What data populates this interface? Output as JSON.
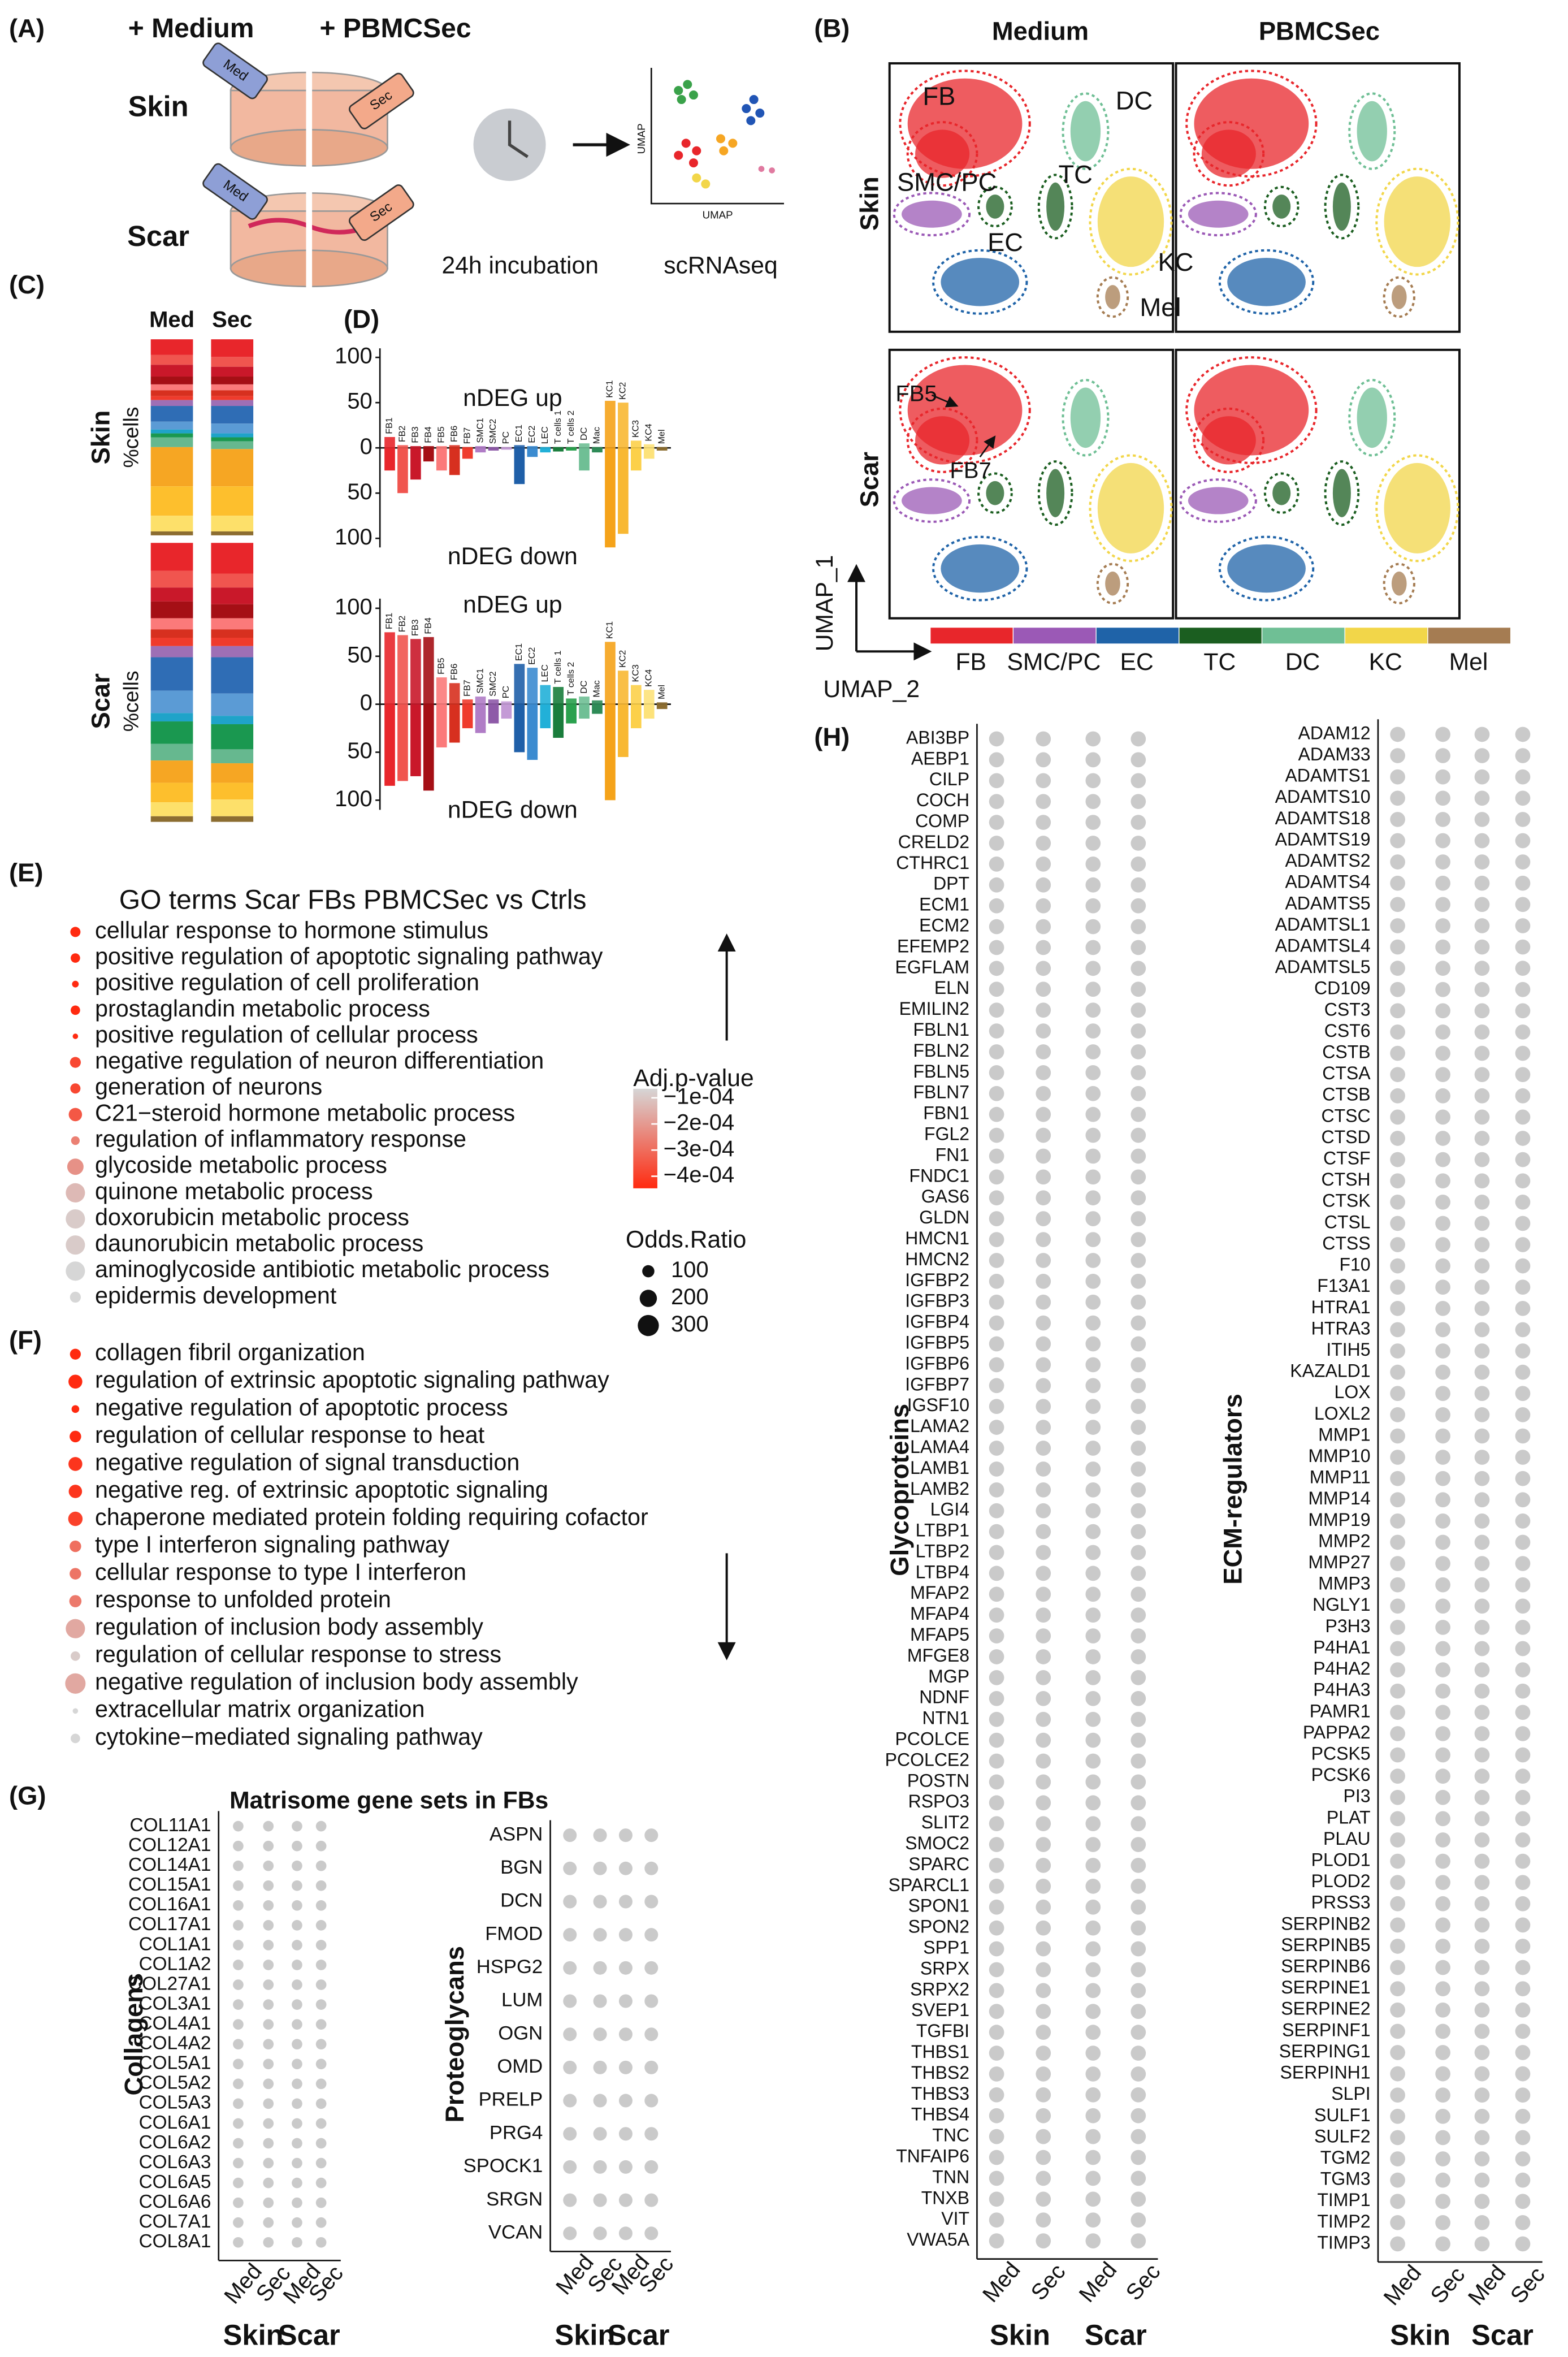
{
  "panel_a": {
    "label": "(A)",
    "medium": "+ Medium",
    "pbmcsec": "+ PBMCSec",
    "rows": [
      "Skin",
      "Scar"
    ],
    "syringes": [
      "Med",
      "Sec"
    ],
    "incubation": "24h incubation",
    "method": "scRNAseq",
    "umap_axes": [
      "UMAP",
      "UMAP"
    ]
  },
  "panel_b": {
    "label": "(B)",
    "columns": [
      "Medium",
      "PBMCSec"
    ],
    "rows": [
      "Skin",
      "Scar"
    ],
    "clusters": [
      "FB",
      "DC",
      "SMC/PC",
      "TC",
      "EC",
      "KC",
      "Mel"
    ],
    "subclusters": [
      "FB5",
      "FB7"
    ],
    "axis_y": "UMAP_1",
    "axis_x": "UMAP_2",
    "legend": [
      {
        "name": "FB",
        "color": "#e8262b"
      },
      {
        "name": "SMC/PC",
        "color": "#9b59b6"
      },
      {
        "name": "EC",
        "color": "#1f63a8"
      },
      {
        "name": "TC",
        "color": "#1b5e20"
      },
      {
        "name": "DC",
        "color": "#6fbf95"
      },
      {
        "name": "KC",
        "color": "#f2d649"
      },
      {
        "name": "Mel",
        "color": "#a57c52"
      }
    ]
  },
  "panel_c": {
    "label": "(C)",
    "columns": [
      "Med",
      "Sec"
    ],
    "rows": [
      "Skin",
      "Scar"
    ],
    "axis_label": "%cells",
    "segment_colors": [
      "#e8262b",
      "#f0554f",
      "#c9182a",
      "#a50f15",
      "#fb7a7a",
      "#d7301f",
      "#ef3b2c",
      "#9e6fb5",
      "#2f6db5",
      "#5b9bd5",
      "#1fa3c9",
      "#1a9850",
      "#66b88f",
      "#f6a623",
      "#fdbf2d",
      "#fde06a",
      "#8c6d31"
    ],
    "skin": [
      [
        8,
        5,
        6,
        4,
        3,
        3,
        2,
        3,
        8,
        4,
        2,
        2,
        5,
        20,
        15,
        8,
        2
      ],
      [
        9,
        5,
        5,
        4,
        3,
        3,
        2,
        3,
        9,
        5,
        2,
        2,
        4,
        19,
        15,
        8,
        2
      ]
    ],
    "scar": [
      [
        10,
        6,
        5,
        6,
        4,
        3,
        3,
        4,
        12,
        8,
        3,
        8,
        6,
        8,
        7,
        5,
        2
      ],
      [
        11,
        5,
        6,
        5,
        4,
        3,
        3,
        4,
        13,
        8,
        3,
        9,
        5,
        7,
        6,
        6,
        2
      ]
    ]
  },
  "panel_d_label": "(D)",
  "chart_data": [
    {
      "type": "bar",
      "categories": [
        "FB1",
        "FB2",
        "FB3",
        "FB4",
        "FB5",
        "FB6",
        "FB7",
        "SMC1",
        "SMC2",
        "PC",
        "EC1",
        "EC2",
        "LEC",
        "T cells 1",
        "T cells 2",
        "DC",
        "Mac",
        "KC1",
        "KC2",
        "KC3",
        "KC4",
        "Mel"
      ],
      "colors": [
        "#e8262b",
        "#f0554f",
        "#c9182a",
        "#a50f15",
        "#fb7a7a",
        "#d7301f",
        "#ef3b2c",
        "#b07cc6",
        "#8e5aa8",
        "#c49bd6",
        "#1f5fa8",
        "#3b8bd0",
        "#22b0d8",
        "#1a7d3c",
        "#2aa14e",
        "#6fbf95",
        "#2e8b57",
        "#f5a31a",
        "#f8b833",
        "#fcd04a",
        "#fde27a",
        "#8c6d31"
      ],
      "series": [
        {
          "name": "nDEG up",
          "values": [
            12,
            3,
            2,
            2,
            2,
            3,
            1,
            2,
            1,
            1,
            3,
            2,
            1,
            1,
            1,
            5,
            1,
            52,
            50,
            8,
            4,
            1
          ]
        },
        {
          "name": "nDEG down",
          "values": [
            -25,
            -50,
            -35,
            -15,
            -25,
            -30,
            -12,
            -5,
            -3,
            -2,
            -40,
            -10,
            -5,
            -4,
            -3,
            -25,
            -5,
            -110,
            -95,
            -25,
            -12,
            -3
          ]
        }
      ],
      "ylim": [
        -110,
        110
      ],
      "yticks": [
        100,
        50,
        0,
        {
          "value": -50,
          "label": "50"
        },
        {
          "value": -100,
          "label": "100"
        }
      ]
    },
    {
      "type": "bar",
      "categories": [
        "FB1",
        "FB2",
        "FB3",
        "FB4",
        "FB5",
        "FB6",
        "FB7",
        "SMC1",
        "SMC2",
        "PC",
        "EC1",
        "EC2",
        "LEC",
        "T cells 1",
        "T cells 2",
        "DC",
        "Mac",
        "KC1",
        "KC2",
        "KC3",
        "KC4",
        "Mel"
      ],
      "colors": [
        "#e8262b",
        "#f0554f",
        "#c9182a",
        "#a50f15",
        "#fb7a7a",
        "#d7301f",
        "#ef3b2c",
        "#b07cc6",
        "#8e5aa8",
        "#c49bd6",
        "#1f5fa8",
        "#3b8bd0",
        "#22b0d8",
        "#1a7d3c",
        "#2aa14e",
        "#6fbf95",
        "#2e8b57",
        "#f5a31a",
        "#f8b833",
        "#fcd04a",
        "#fde27a",
        "#8c6d31"
      ],
      "series": [
        {
          "name": "nDEG up",
          "values": [
            75,
            72,
            68,
            70,
            28,
            22,
            5,
            8,
            5,
            3,
            42,
            38,
            20,
            18,
            6,
            8,
            4,
            65,
            35,
            20,
            15,
            2
          ]
        },
        {
          "name": "nDEG down",
          "values": [
            -85,
            -80,
            -75,
            -90,
            -45,
            -40,
            -25,
            -30,
            -20,
            -15,
            -50,
            -58,
            -25,
            -35,
            -20,
            -15,
            -10,
            -100,
            -55,
            -25,
            -15,
            -5
          ]
        }
      ],
      "ylim": [
        -110,
        110
      ],
      "yticks": [
        100,
        50,
        0,
        {
          "value": -50,
          "label": "50"
        },
        {
          "value": -100,
          "label": "100"
        }
      ]
    }
  ],
  "panel_e": {
    "label": "(E)",
    "title": "GO terms Scar FBs PBMCSec vs Ctrls",
    "terms": [
      "cellular response to hormone stimulus",
      "positive regulation of apoptotic signaling pathway",
      "positive regulation of cell proliferation",
      "prostaglandin metabolic process",
      "positive regulation of cellular process",
      "negative regulation of neuron differentiation",
      "generation of neurons",
      "C21−steroid hormone metabolic process",
      "regulation of inflammatory response",
      "glycoside metabolic process",
      "quinone metabolic process",
      "doxorubicin metabolic process",
      "daunorubicin metabolic process",
      "aminoglycoside antibiotic metabolic process",
      "epidermis development"
    ],
    "odds_ratio": [
      70,
      60,
      30,
      60,
      20,
      80,
      70,
      120,
      50,
      180,
      250,
      250,
      250,
      250,
      80
    ],
    "adj_p": [
      -0.00042,
      -0.00042,
      -0.0004,
      -0.0004,
      -0.0004,
      -0.00035,
      -0.00035,
      -0.00032,
      -0.00025,
      -0.00022,
      -0.00015,
      -0.00012,
      -0.00012,
      -0.0001,
      -0.0001
    ],
    "legend": {
      "color_title": "Adj.p-value",
      "colors": [
        "#d6d6d6",
        "#ff2a10"
      ],
      "color_ticks": [
        {
          "value": -0.0001,
          "label": "−1e-04"
        },
        {
          "value": -0.0002,
          "label": "−2e-04"
        },
        {
          "value": -0.0003,
          "label": "−3e-04"
        },
        {
          "value": -0.0004,
          "label": "−4e-04"
        }
      ],
      "size_title": "Odds.Ratio",
      "size_ticks": [
        100,
        200,
        300
      ]
    }
  },
  "panel_f": {
    "label": "(F)",
    "terms": [
      "collagen fibril organization",
      "regulation of extrinsic apoptotic signaling pathway",
      "negative regulation of apoptotic process",
      "regulation of cellular response to heat",
      "negative regulation of signal transduction",
      "negative reg. of extrinsic apoptotic signaling",
      "chaperone mediated protein folding requiring cofactor",
      "type I interferon signaling pathway",
      "cellular response to type I interferon",
      "response to unfolded protein",
      "regulation of inclusion body assembly",
      "regulation of cellular response to stress",
      "negative regulation of inclusion body assembly",
      "extracellular matrix organization",
      "cytokine−mediated signaling pathway"
    ],
    "odds_ratio": [
      80,
      130,
      40,
      90,
      130,
      120,
      140,
      90,
      90,
      100,
      250,
      60,
      280,
      20,
      60
    ],
    "adj_p": [
      -0.00042,
      -0.0004,
      -0.0004,
      -0.0004,
      -0.00038,
      -0.00038,
      -0.00036,
      -0.00028,
      -0.00027,
      -0.00026,
      -0.00018,
      -0.00012,
      -0.00018,
      -0.0001,
      -0.0001
    ]
  },
  "panel_g": {
    "label": "(G)",
    "title": "Matrisome gene sets in FBs",
    "conditions": [
      "Med",
      "Sec",
      "Med",
      "Sec"
    ],
    "tissues": [
      "Skin",
      "Scar"
    ],
    "plots": [
      {
        "name": "Collagens",
        "genes": [
          "COL11A1",
          "COL12A1",
          "COL14A1",
          "COL15A1",
          "COL16A1",
          "COL17A1",
          "COL1A1",
          "COL1A2",
          "COL27A1",
          "COL3A1",
          "COL4A1",
          "COL4A2",
          "COL5A1",
          "COL5A2",
          "COL5A3",
          "COL6A1",
          "COL6A2",
          "COL6A3",
          "COL6A5",
          "COL6A6",
          "COL7A1",
          "COL8A1"
        ]
      },
      {
        "name": "Proteoglycans",
        "genes": [
          "ASPN",
          "BGN",
          "DCN",
          "FMOD",
          "HSPG2",
          "LUM",
          "OGN",
          "OMD",
          "PRELP",
          "PRG4",
          "SPOCK1",
          "SRGN",
          "VCAN"
        ]
      }
    ]
  },
  "panel_h": {
    "label": "(H)",
    "conditions": [
      "Med",
      "Sec",
      "Med",
      "Sec"
    ],
    "tissues": [
      "Skin",
      "Scar"
    ],
    "plots": [
      {
        "name": "Glycoproteins",
        "genes": [
          "ABI3BP",
          "AEBP1",
          "CILP",
          "COCH",
          "COMP",
          "CRELD2",
          "CTHRC1",
          "DPT",
          "ECM1",
          "ECM2",
          "EFEMP2",
          "EGFLAM",
          "ELN",
          "EMILIN2",
          "FBLN1",
          "FBLN2",
          "FBLN5",
          "FBLN7",
          "FBN1",
          "FGL2",
          "FN1",
          "FNDC1",
          "GAS6",
          "GLDN",
          "HMCN1",
          "HMCN2",
          "IGFBP2",
          "IGFBP3",
          "IGFBP4",
          "IGFBP5",
          "IGFBP6",
          "IGFBP7",
          "IGSF10",
          "LAMA2",
          "LAMA4",
          "LAMB1",
          "LAMB2",
          "LGI4",
          "LTBP1",
          "LTBP2",
          "LTBP4",
          "MFAP2",
          "MFAP4",
          "MFAP5",
          "MFGE8",
          "MGP",
          "NDNF",
          "NTN1",
          "PCOLCE",
          "PCOLCE2",
          "POSTN",
          "RSPO3",
          "SLIT2",
          "SMOC2",
          "SPARC",
          "SPARCL1",
          "SPON1",
          "SPON2",
          "SPP1",
          "SRPX",
          "SRPX2",
          "SVEP1",
          "TGFBI",
          "THBS1",
          "THBS2",
          "THBS3",
          "THBS4",
          "TNC",
          "TNFAIP6",
          "TNN",
          "TNXB",
          "VIT",
          "VWA5A"
        ]
      },
      {
        "name": "ECM-regulators",
        "genes": [
          "ADAM12",
          "ADAM33",
          "ADAMTS1",
          "ADAMTS10",
          "ADAMTS18",
          "ADAMTS19",
          "ADAMTS2",
          "ADAMTS4",
          "ADAMTS5",
          "ADAMTSL1",
          "ADAMTSL4",
          "ADAMTSL5",
          "CD109",
          "CST3",
          "CST6",
          "CSTB",
          "CTSA",
          "CTSB",
          "CTSC",
          "CTSD",
          "CTSF",
          "CTSH",
          "CTSK",
          "CTSL",
          "CTSS",
          "F10",
          "F13A1",
          "HTRA1",
          "HTRA3",
          "ITIH5",
          "KAZALD1",
          "LOX",
          "LOXL2",
          "MMP1",
          "MMP10",
          "MMP11",
          "MMP14",
          "MMP19",
          "MMP2",
          "MMP27",
          "MMP3",
          "NGLY1",
          "P3H3",
          "P4HA1",
          "P4HA2",
          "P4HA3",
          "PAMR1",
          "PAPPA2",
          "PCSK5",
          "PCSK6",
          "PI3",
          "PLAT",
          "PLAU",
          "PLOD1",
          "PLOD2",
          "PRSS3",
          "SERPINB2",
          "SERPINB5",
          "SERPINB6",
          "SERPINE1",
          "SERPINE2",
          "SERPINF1",
          "SERPING1",
          "SERPINH1",
          "SLPI",
          "SULF1",
          "SULF2",
          "TGM2",
          "TGM3",
          "TIMP1",
          "TIMP2",
          "TIMP3"
        ]
      }
    ]
  }
}
